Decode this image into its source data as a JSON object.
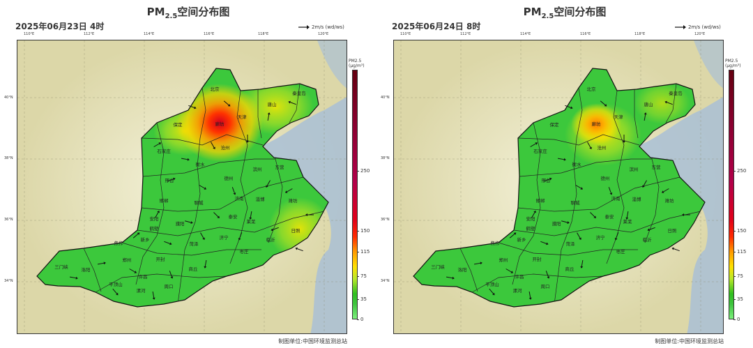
{
  "panels": [
    {
      "id": "left",
      "title_prefix": "PM",
      "title_subscript": "2.5",
      "title_suffix": "空间分布图",
      "subtitle": "2025年06月23日 4时",
      "wind_legend": "2m/s (wd/ws)",
      "lon_ticks": [
        "110°E",
        "112°E",
        "114°E",
        "116°E",
        "118°E",
        "120°E"
      ],
      "lat_ticks": [
        "40°N",
        "38°N",
        "36°N",
        "34°N"
      ],
      "colorbar_title": "PM2.5",
      "colorbar_unit": "(μg/m³)",
      "colorbar_ticks": [
        "250",
        "150",
        "115",
        "75",
        "35",
        "0"
      ],
      "credit": "制图单位:中国环境监测总站",
      "hotspot": "severe"
    },
    {
      "id": "right",
      "title_prefix": "PM",
      "title_subscript": "2.5",
      "title_suffix": "空间分布图",
      "subtitle": "2025年06月24日 8时",
      "wind_legend": "2m/s (wd/ws)",
      "lon_ticks": [
        "110°E",
        "112°E",
        "114°E",
        "116°E",
        "118°E",
        "120°E"
      ],
      "lat_ticks": [
        "40°N",
        "38°N",
        "36°N",
        "34°N"
      ],
      "colorbar_title": "PM2.5",
      "colorbar_unit": "(μg/m³)",
      "colorbar_ticks": [
        "250",
        "150",
        "115",
        "75",
        "35",
        "0"
      ],
      "credit": "制图单位:中国环境监测总站",
      "hotspot": "moderate"
    }
  ],
  "cities": [
    "北京",
    "天津",
    "唐山",
    "秦皇岛",
    "廊坊",
    "保定",
    "沧州",
    "石家庄",
    "衡水",
    "邢台",
    "德州",
    "滨州",
    "东营",
    "邯郸",
    "聊城",
    "济南",
    "淄博",
    "潍坊",
    "安阳",
    "鹤壁",
    "濮阳",
    "新乡",
    "泰安",
    "莱芜",
    "日照",
    "临沂",
    "焦作",
    "济宁",
    "菏泽",
    "枣庄",
    "三门峡",
    "洛阳",
    "郑州",
    "开封",
    "商丘",
    "平顶山",
    "许昌",
    "周口",
    "漯河"
  ],
  "colors": {
    "low": "#3cc83c",
    "moderate": "#c8e61e",
    "high": "#ff9a00",
    "severe": "#d2001e",
    "sea": "#a9c0d6",
    "land_bg": "#e8e6c4"
  }
}
